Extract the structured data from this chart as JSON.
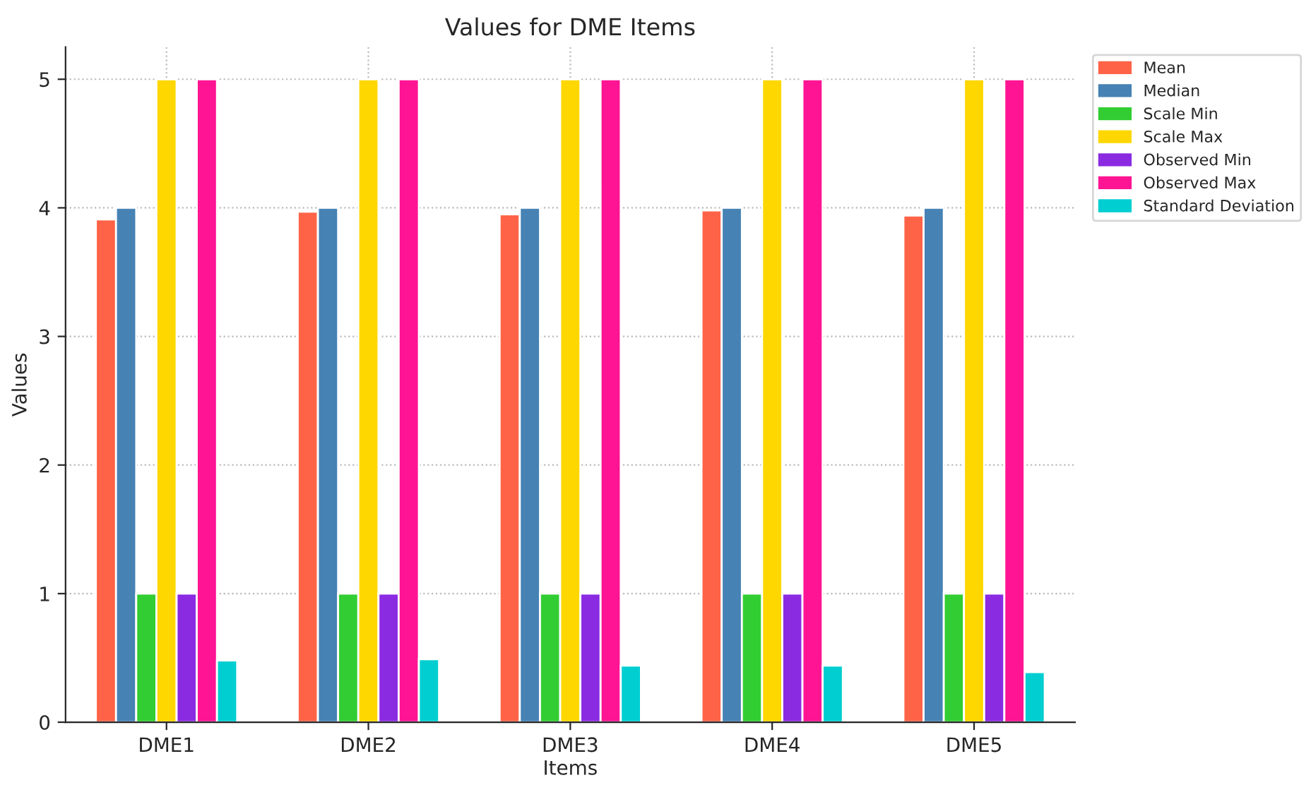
{
  "chart_data": {
    "type": "bar",
    "title": "Values for DME Items",
    "xlabel": "Items",
    "ylabel": "Values",
    "categories": [
      "DME1",
      "DME2",
      "DME3",
      "DME4",
      "DME5"
    ],
    "series": [
      {
        "name": "Mean",
        "color": "#ff6347",
        "values": [
          3.91,
          3.97,
          3.95,
          3.98,
          3.94
        ]
      },
      {
        "name": "Median",
        "color": "#4682b4",
        "values": [
          4,
          4,
          4,
          4,
          4
        ]
      },
      {
        "name": "Scale Min",
        "color": "#32cd32",
        "values": [
          1,
          1,
          1,
          1,
          1
        ]
      },
      {
        "name": "Scale Max",
        "color": "#ffd700",
        "values": [
          5,
          5,
          5,
          5,
          5
        ]
      },
      {
        "name": "Observed Min",
        "color": "#8a2be2",
        "values": [
          1,
          1,
          1,
          1,
          1
        ]
      },
      {
        "name": "Observed Max",
        "color": "#ff1493",
        "values": [
          5,
          5,
          5,
          5,
          5
        ]
      },
      {
        "name": "Standard Deviation",
        "color": "#00ced1",
        "values": [
          0.48,
          0.49,
          0.44,
          0.44,
          0.39
        ]
      }
    ],
    "ylim": [
      0,
      5.25
    ],
    "yticks": [
      0,
      1,
      2,
      3,
      4,
      5
    ],
    "grid": true,
    "legend": "top right"
  }
}
